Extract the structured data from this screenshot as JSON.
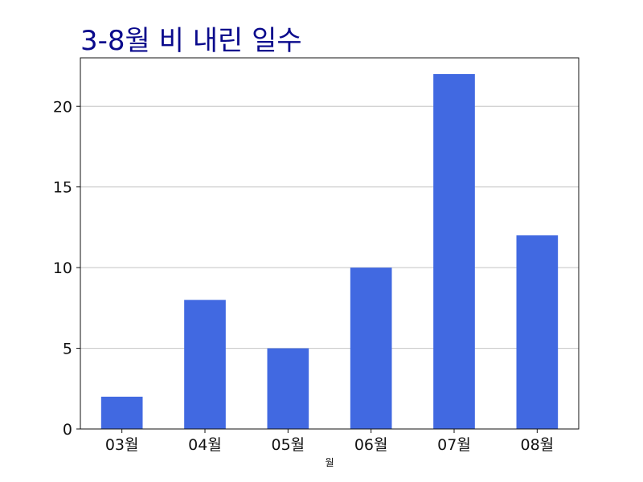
{
  "chart_data": {
    "type": "bar",
    "title": "3-8월 비 내린 일수",
    "xlabel": "월",
    "ylabel": "",
    "categories": [
      "03월",
      "04월",
      "05월",
      "06월",
      "07월",
      "08월"
    ],
    "values": [
      2,
      8,
      5,
      10,
      22,
      12
    ],
    "ylim": [
      0,
      23
    ],
    "yticks": [
      0,
      5,
      10,
      15,
      20
    ],
    "grid": true,
    "bar_color": "#4169e1",
    "title_color": "#0a0a8c"
  }
}
